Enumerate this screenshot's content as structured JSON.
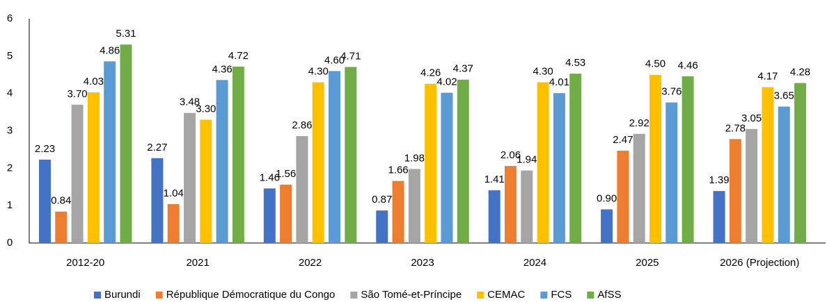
{
  "chart_data": {
    "type": "bar",
    "categories": [
      "2012-20",
      "2021",
      "2022",
      "2023",
      "2024",
      "2025",
      "2026 (Projection)"
    ],
    "series": [
      {
        "name": "Burundi",
        "color": "#4472c4",
        "values": [
          2.23,
          2.27,
          1.46,
          0.87,
          1.41,
          0.9,
          1.39
        ],
        "value_labels": [
          "2.23",
          "2.27",
          "1.46",
          "0.87",
          "1.41",
          "0.90",
          "1.39"
        ]
      },
      {
        "name": "République Démocratique du Congo",
        "color": "#ed7d31",
        "values": [
          0.84,
          1.04,
          1.56,
          1.66,
          2.06,
          2.47,
          2.78
        ],
        "value_labels": [
          "0.84",
          "1.04",
          "1.56",
          "1.66",
          "2.06",
          "2.47",
          "2.78"
        ]
      },
      {
        "name": "São Tomé-et-Príncipe",
        "color": "#a5a5a5",
        "values": [
          3.7,
          3.48,
          2.86,
          1.98,
          1.94,
          2.92,
          3.05
        ],
        "value_labels": [
          "3.70",
          "3.48",
          "2.86",
          "1.98",
          "1.94",
          "2.92",
          "3.05"
        ]
      },
      {
        "name": "CEMAC",
        "color": "#ffc000",
        "values": [
          4.03,
          3.3,
          4.3,
          4.26,
          4.3,
          4.5,
          4.17
        ],
        "value_labels": [
          "4.03",
          "3.30",
          "4.30",
          "4.26",
          "4.30",
          "4.50",
          "4.17"
        ]
      },
      {
        "name": "FCS",
        "color": "#5b9bd5",
        "values": [
          4.86,
          4.36,
          4.6,
          4.02,
          4.01,
          3.76,
          3.65
        ],
        "value_labels": [
          "4.86",
          "4.36",
          "4.60",
          "4.02",
          "4.01",
          "3.76",
          "3.65"
        ]
      },
      {
        "name": "AfSS",
        "color": "#70ad47",
        "values": [
          5.31,
          4.72,
          4.71,
          4.37,
          4.53,
          4.46,
          4.28
        ],
        "value_labels": [
          "5.31",
          "4.72",
          "4.71",
          "4.37",
          "4.53",
          "4.46",
          "4.28"
        ]
      }
    ],
    "ylim": [
      0,
      6
    ],
    "yticks": [
      0,
      1,
      2,
      3,
      4,
      5,
      6
    ],
    "grid": false,
    "legend": "bottom"
  }
}
